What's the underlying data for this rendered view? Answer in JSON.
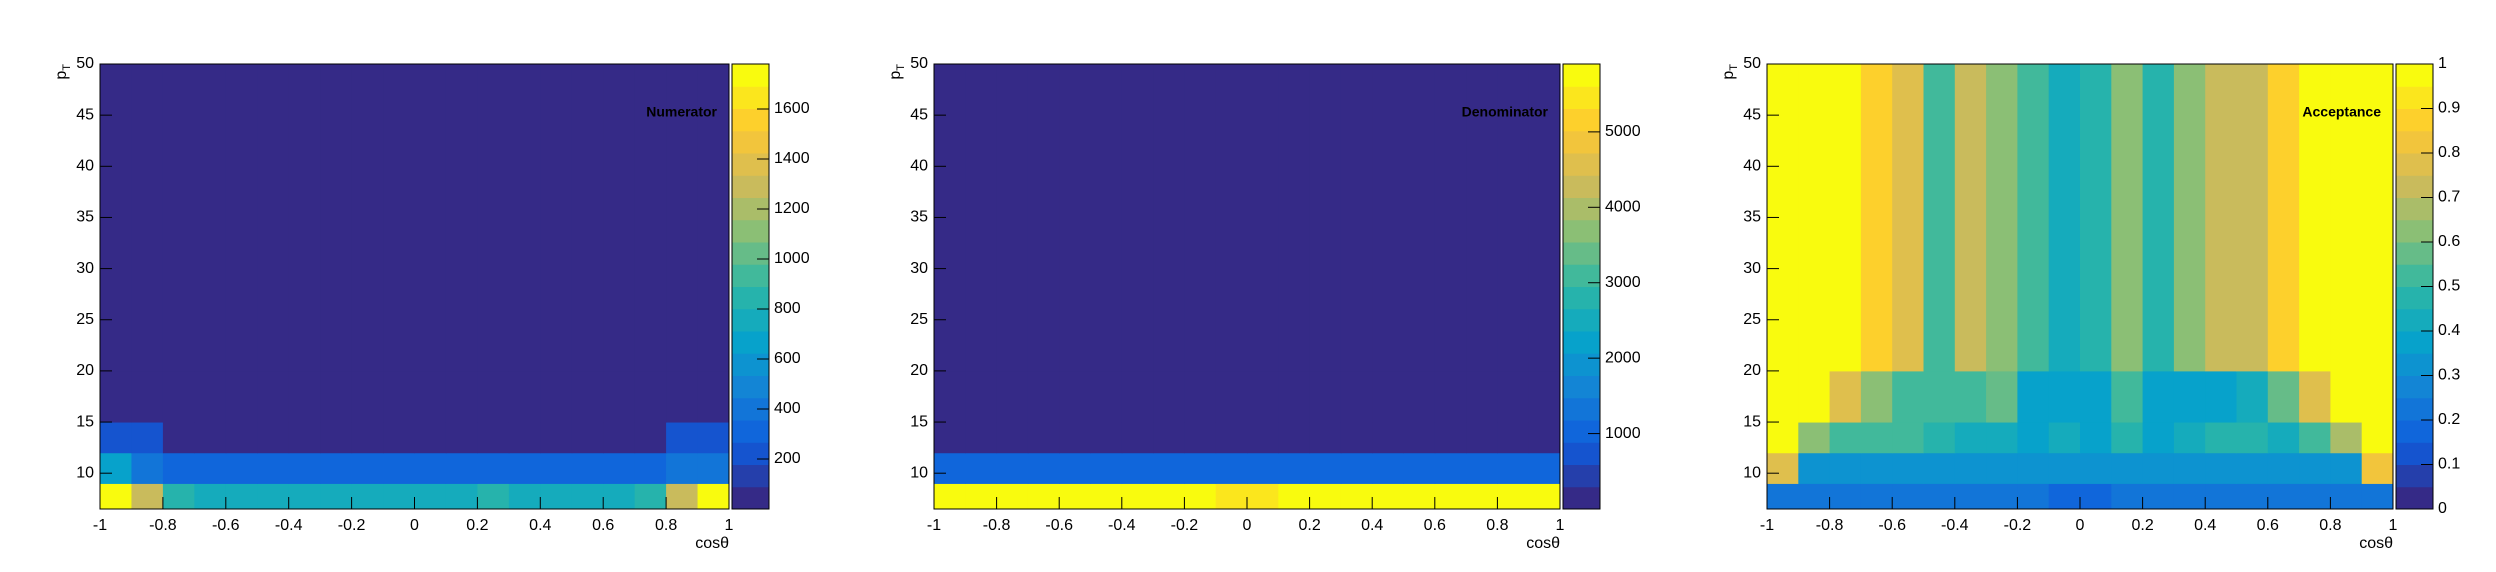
{
  "chart_data": [
    {
      "type": "heatmap",
      "title": "Numerator",
      "xlabel": "cosθ",
      "ylabel": "p",
      "ylabel_sub": "T",
      "xbins": [
        -1,
        -0.9,
        -0.8,
        -0.7,
        -0.6,
        -0.5,
        -0.4,
        -0.3,
        -0.2,
        -0.1,
        0,
        0.1,
        0.2,
        0.3,
        0.4,
        0.5,
        0.6,
        0.7,
        0.8,
        0.9,
        1
      ],
      "ybins": [
        6.5,
        9,
        12,
        15,
        20,
        50
      ],
      "z": [
        [
          1750,
          1250,
          850,
          800,
          790,
          780,
          770,
          760,
          760,
          750,
          750,
          790,
          810,
          800,
          780,
          770,
          790,
          820,
          1250,
          1750
        ],
        [
          650,
          400,
          330,
          310,
          300,
          300,
          300,
          300,
          300,
          300,
          300,
          300,
          300,
          300,
          300,
          300,
          310,
          330,
          400,
          420
        ],
        [
          200,
          200,
          20,
          20,
          20,
          20,
          20,
          20,
          20,
          20,
          20,
          20,
          20,
          20,
          20,
          20,
          20,
          20,
          200,
          200
        ],
        [
          5,
          5,
          5,
          5,
          5,
          5,
          5,
          5,
          5,
          5,
          5,
          5,
          5,
          5,
          5,
          5,
          5,
          5,
          5,
          5
        ],
        [
          1,
          1,
          1,
          1,
          1,
          1,
          1,
          1,
          1,
          1,
          1,
          1,
          1,
          1,
          1,
          1,
          1,
          1,
          1,
          1
        ]
      ],
      "xlim": [
        -1,
        1
      ],
      "xticks": [
        -1,
        -0.8,
        -0.6,
        -0.4,
        -0.2,
        0,
        0.2,
        0.4,
        0.6,
        0.8,
        1
      ],
      "ylim": [
        6.5,
        50
      ],
      "yticks": [
        10,
        15,
        20,
        25,
        30,
        35,
        40,
        45,
        50
      ],
      "zlim": [
        0,
        1780
      ],
      "zticks": [
        200,
        400,
        600,
        800,
        1000,
        1200,
        1400,
        1600
      ],
      "contours": 20,
      "palette": [
        "#352a87",
        "#0f5cdd",
        "#1481d6",
        "#06a4ca",
        "#2eb7a4",
        "#87bf77",
        "#d1bb59",
        "#fec832",
        "#f9fb0e"
      ]
    },
    {
      "type": "heatmap",
      "title": "Denominator",
      "xlabel": "cosθ",
      "ylabel": "p",
      "ylabel_sub": "T",
      "xbins": [
        -1,
        -0.9,
        -0.8,
        -0.7,
        -0.6,
        -0.5,
        -0.4,
        -0.3,
        -0.2,
        -0.1,
        0,
        0.1,
        0.2,
        0.3,
        0.4,
        0.5,
        0.6,
        0.7,
        0.8,
        0.9,
        1
      ],
      "ybins": [
        6.5,
        9,
        12,
        15,
        20,
        50
      ],
      "z": [
        [
          5800,
          5800,
          5800,
          5750,
          5750,
          5750,
          5750,
          5750,
          5750,
          5600,
          5600,
          5750,
          5750,
          5750,
          5750,
          5750,
          5750,
          5800,
          5800,
          5800
        ],
        [
          1100,
          1100,
          1100,
          1100,
          1100,
          1100,
          1100,
          1100,
          1100,
          1100,
          1100,
          1100,
          1100,
          1100,
          1100,
          1100,
          1050,
          1100,
          1100,
          1100
        ],
        [
          50,
          50,
          50,
          50,
          50,
          50,
          50,
          50,
          50,
          50,
          50,
          50,
          50,
          50,
          50,
          50,
          50,
          50,
          50,
          50
        ],
        [
          10,
          10,
          10,
          10,
          10,
          10,
          10,
          10,
          10,
          10,
          10,
          10,
          10,
          10,
          10,
          10,
          10,
          10,
          10,
          10
        ],
        [
          2,
          2,
          2,
          2,
          2,
          2,
          2,
          2,
          2,
          2,
          2,
          2,
          2,
          2,
          2,
          2,
          2,
          2,
          2,
          2
        ]
      ],
      "xlim": [
        -1,
        1
      ],
      "xticks": [
        -1,
        -0.8,
        -0.6,
        -0.4,
        -0.2,
        0,
        0.2,
        0.4,
        0.6,
        0.8,
        1
      ],
      "ylim": [
        6.5,
        50
      ],
      "yticks": [
        10,
        15,
        20,
        25,
        30,
        35,
        40,
        45,
        50
      ],
      "zlim": [
        0,
        5900
      ],
      "zticks": [
        1000,
        2000,
        3000,
        4000,
        5000
      ],
      "contours": 20,
      "palette": [
        "#352a87",
        "#0f5cdd",
        "#1481d6",
        "#06a4ca",
        "#2eb7a4",
        "#87bf77",
        "#d1bb59",
        "#fec832",
        "#f9fb0e"
      ]
    },
    {
      "type": "heatmap",
      "title": "Acceptance",
      "xlabel": "cosθ",
      "ylabel": "p",
      "ylabel_sub": "T",
      "xbins": [
        -1,
        -0.9,
        -0.8,
        -0.7,
        -0.6,
        -0.5,
        -0.4,
        -0.3,
        -0.2,
        -0.1,
        0,
        0.1,
        0.2,
        0.3,
        0.4,
        0.5,
        0.6,
        0.7,
        0.8,
        0.9,
        1
      ],
      "ybins": [
        6.5,
        9,
        12,
        15,
        20,
        50
      ],
      "z": [
        [
          0.22,
          0.22,
          0.22,
          0.22,
          0.22,
          0.22,
          0.22,
          0.22,
          0.22,
          0.18,
          0.18,
          0.22,
          0.22,
          0.22,
          0.22,
          0.22,
          0.22,
          0.22,
          0.22,
          0.22
        ],
        [
          0.75,
          0.3,
          0.3,
          0.3,
          0.3,
          0.3,
          0.3,
          0.3,
          0.3,
          0.3,
          0.3,
          0.3,
          0.3,
          0.3,
          0.3,
          0.3,
          0.3,
          0.3,
          0.3,
          0.8
        ],
        [
          1,
          0.62,
          0.5,
          0.5,
          0.5,
          0.45,
          0.4,
          0.4,
          0.35,
          0.4,
          0.35,
          0.45,
          0.35,
          0.4,
          0.45,
          0.45,
          0.4,
          0.5,
          0.65,
          1
        ],
        [
          1,
          1,
          0.75,
          0.62,
          0.5,
          0.5,
          0.5,
          0.55,
          0.35,
          0.35,
          0.35,
          0.5,
          0.35,
          0.35,
          0.35,
          0.42,
          0.58,
          0.75,
          1,
          1
        ],
        [
          1,
          1,
          1,
          0.85,
          0.75,
          0.5,
          0.72,
          0.6,
          0.5,
          0.42,
          0.48,
          0.6,
          0.45,
          0.6,
          0.72,
          0.72,
          0.85,
          1,
          1,
          1
        ]
      ],
      "xlim": [
        -1,
        1
      ],
      "xticks": [
        -1,
        -0.8,
        -0.6,
        -0.4,
        -0.2,
        0,
        0.2,
        0.4,
        0.6,
        0.8,
        1
      ],
      "ylim": [
        6.5,
        50
      ],
      "yticks": [
        10,
        15,
        20,
        25,
        30,
        35,
        40,
        45,
        50
      ],
      "zlim": [
        0,
        1
      ],
      "zticks": [
        0,
        0.1,
        0.2,
        0.3,
        0.4,
        0.5,
        0.6,
        0.7,
        0.8,
        0.9,
        1
      ],
      "contours": 20,
      "palette": [
        "#352a87",
        "#0f5cdd",
        "#1481d6",
        "#06a4ca",
        "#2eb7a4",
        "#87bf77",
        "#d1bb59",
        "#fec832",
        "#f9fb0e"
      ]
    }
  ]
}
